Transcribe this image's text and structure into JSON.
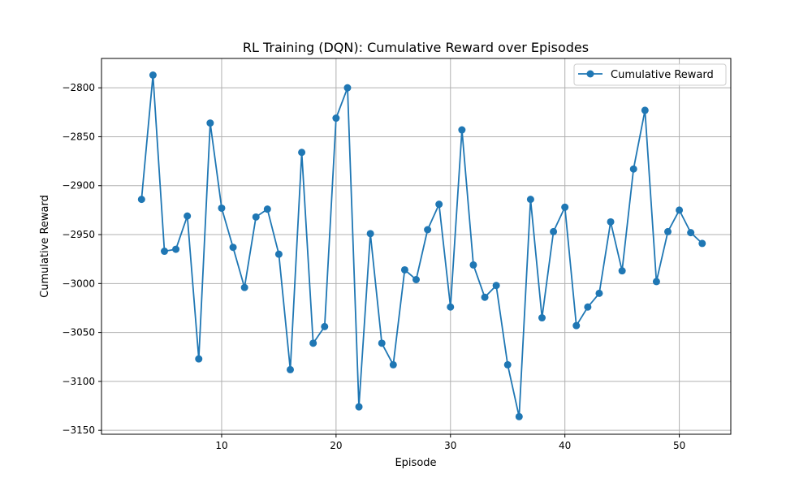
{
  "chart_data": {
    "type": "line",
    "title": "RL Training (DQN): Cumulative Reward over Episodes",
    "xlabel": "Episode",
    "ylabel": "Cumulative Reward",
    "xlim": [
      -0.5,
      54.5
    ],
    "ylim": [
      -3154,
      -2770
    ],
    "xticks": [
      10,
      20,
      30,
      40,
      50
    ],
    "yticks": [
      -2800,
      -2850,
      -2900,
      -2950,
      -3000,
      -3050,
      -3100,
      -3150
    ],
    "xtick_labels": [
      "10",
      "20",
      "30",
      "40",
      "50"
    ],
    "ytick_labels": [
      "−2800",
      "−2850",
      "−2900",
      "−2950",
      "−3000",
      "−3050",
      "−3100",
      "−3150"
    ],
    "grid": true,
    "legend": "top-right",
    "series": [
      {
        "name": "Cumulative Reward",
        "color": "#1f77b4",
        "marker": "circle",
        "x": [
          3,
          4,
          5,
          6,
          7,
          8,
          9,
          10,
          11,
          12,
          13,
          14,
          15,
          16,
          17,
          18,
          19,
          20,
          21,
          22,
          23,
          24,
          25,
          26,
          27,
          28,
          29,
          30,
          31,
          32,
          33,
          34,
          35,
          36,
          37,
          38,
          39,
          40,
          41,
          42,
          43,
          44,
          45,
          46,
          47,
          48,
          49,
          50,
          51,
          52
        ],
        "y": [
          -2914,
          -2787,
          -2967,
          -2965,
          -2931,
          -3077,
          -2836,
          -2923,
          -2963,
          -3004,
          -2932,
          -2924,
          -2970,
          -3088,
          -2866,
          -3061,
          -3044,
          -2831,
          -2800,
          -3126,
          -2949,
          -3061,
          -3083,
          -2986,
          -2996,
          -2945,
          -2919,
          -3024,
          -2843,
          -2981,
          -3014,
          -3002,
          -3083,
          -3136,
          -2914,
          -3035,
          -2947,
          -2922,
          -3043,
          -3024,
          -3010,
          -2937,
          -2987,
          -2883,
          -2823,
          -2998,
          -2947,
          -2925,
          -2948,
          -2959
        ]
      }
    ]
  }
}
